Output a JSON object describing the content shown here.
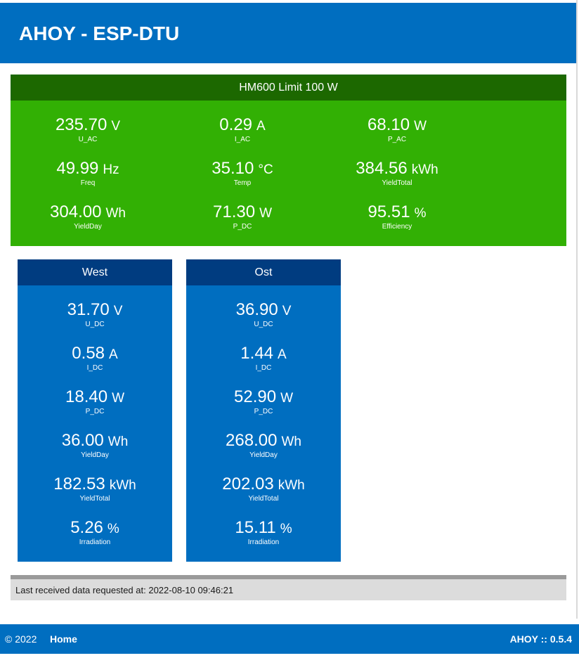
{
  "app": {
    "title": "AHOY - ESP-DTU"
  },
  "inverter": {
    "title": "HM600 Limit 100 W",
    "values": [
      {
        "value": "235.70",
        "unit": "V",
        "name": "U_AC"
      },
      {
        "value": "0.29",
        "unit": "A",
        "name": "I_AC"
      },
      {
        "value": "68.10",
        "unit": "W",
        "name": "P_AC"
      },
      {
        "value": "49.99",
        "unit": "Hz",
        "name": "Freq"
      },
      {
        "value": "35.10",
        "unit": "°C",
        "name": "Temp"
      },
      {
        "value": "384.56",
        "unit": "kWh",
        "name": "YieldTotal"
      },
      {
        "value": "304.00",
        "unit": "Wh",
        "name": "YieldDay"
      },
      {
        "value": "71.30",
        "unit": "W",
        "name": "P_DC"
      },
      {
        "value": "95.51",
        "unit": "%",
        "name": "Efficiency"
      }
    ]
  },
  "channels": [
    {
      "name": "West",
      "values": [
        {
          "value": "31.70",
          "unit": "V",
          "name": "U_DC"
        },
        {
          "value": "0.58",
          "unit": "A",
          "name": "I_DC"
        },
        {
          "value": "18.40",
          "unit": "W",
          "name": "P_DC"
        },
        {
          "value": "36.00",
          "unit": "Wh",
          "name": "YieldDay"
        },
        {
          "value": "182.53",
          "unit": "kWh",
          "name": "YieldTotal"
        },
        {
          "value": "5.26",
          "unit": "%",
          "name": "Irradiation"
        }
      ]
    },
    {
      "name": "Ost",
      "values": [
        {
          "value": "36.90",
          "unit": "V",
          "name": "U_DC"
        },
        {
          "value": "1.44",
          "unit": "A",
          "name": "I_DC"
        },
        {
          "value": "52.90",
          "unit": "W",
          "name": "P_DC"
        },
        {
          "value": "268.00",
          "unit": "Wh",
          "name": "YieldDay"
        },
        {
          "value": "202.03",
          "unit": "kWh",
          "name": "YieldTotal"
        },
        {
          "value": "15.11",
          "unit": "%",
          "name": "Irradiation"
        }
      ]
    }
  ],
  "status": {
    "text": "Last received data requested at: 2022-08-10 09:46:21"
  },
  "footer": {
    "copyright": "© 2022",
    "home": "Home",
    "version": "AHOY :: 0.5.4"
  },
  "colors": {
    "header_blue": "#006ec0",
    "inverter_green": "#32b004",
    "inverter_head": "#1c6800",
    "channel_head": "#003c80"
  }
}
